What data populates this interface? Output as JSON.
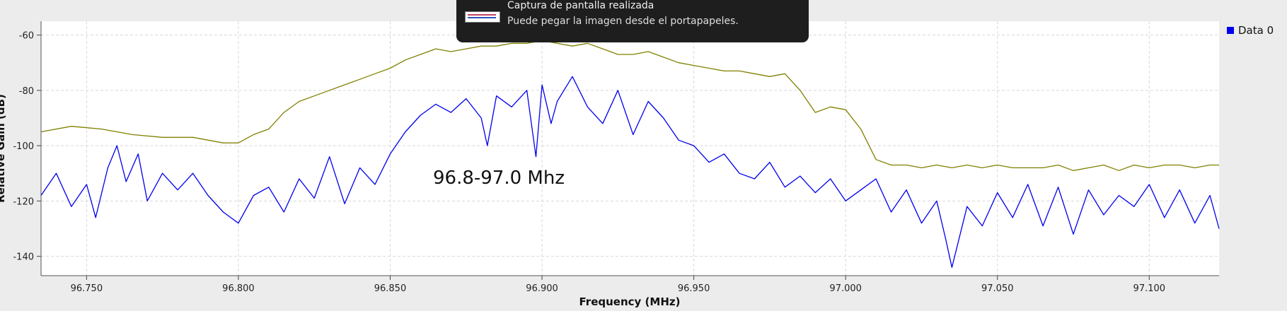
{
  "chart_data": {
    "type": "line",
    "xlabel": "Frequency (MHz)",
    "ylabel": "Relative Gain (dB)",
    "xlim": [
      96.735,
      97.123
    ],
    "ylim": [
      -147,
      -55
    ],
    "grid": true,
    "legend_position": "top-right",
    "x_ticks": [
      96.75,
      96.8,
      96.85,
      96.9,
      96.95,
      97.0,
      97.05,
      97.1
    ],
    "x_tick_labels": [
      "96.750",
      "96.800",
      "96.850",
      "96.900",
      "96.950",
      "97.000",
      "97.050",
      "97.100"
    ],
    "y_ticks": [
      -60,
      -80,
      -100,
      -120,
      -140
    ],
    "y_tick_labels": [
      "-60",
      "-80",
      "-100",
      "-120",
      "-140"
    ],
    "annotation": {
      "text": "96.8-97.0 Mhz",
      "x": 96.866,
      "y": -112
    },
    "series": [
      {
        "name": "Data 0",
        "color": "#0000ee",
        "x": [
          96.735,
          96.74,
          96.745,
          96.75,
          96.753,
          96.757,
          96.76,
          96.763,
          96.767,
          96.77,
          96.775,
          96.78,
          96.785,
          96.79,
          96.795,
          96.8,
          96.805,
          96.81,
          96.815,
          96.82,
          96.825,
          96.83,
          96.835,
          96.84,
          96.845,
          96.85,
          96.855,
          96.86,
          96.865,
          96.87,
          96.875,
          96.88,
          96.882,
          96.885,
          96.89,
          96.895,
          96.898,
          96.9,
          96.903,
          96.905,
          96.91,
          96.915,
          96.92,
          96.925,
          96.93,
          96.935,
          96.94,
          96.945,
          96.95,
          96.955,
          96.96,
          96.965,
          96.97,
          96.975,
          96.98,
          96.985,
          96.99,
          96.995,
          97.0,
          97.005,
          97.01,
          97.015,
          97.02,
          97.025,
          97.03,
          97.033,
          97.035,
          97.04,
          97.045,
          97.05,
          97.055,
          97.06,
          97.065,
          97.07,
          97.075,
          97.08,
          97.085,
          97.09,
          97.095,
          97.1,
          97.105,
          97.11,
          97.115,
          97.12,
          97.123
        ],
        "y": [
          -118,
          -110,
          -122,
          -114,
          -126,
          -108,
          -100,
          -113,
          -103,
          -120,
          -110,
          -116,
          -110,
          -118,
          -124,
          -128,
          -118,
          -115,
          -124,
          -112,
          -119,
          -104,
          -121,
          -108,
          -114,
          -103,
          -95,
          -89,
          -85,
          -88,
          -83,
          -90,
          -100,
          -82,
          -86,
          -80,
          -104,
          -78,
          -92,
          -84,
          -75,
          -86,
          -92,
          -80,
          -96,
          -84,
          -90,
          -98,
          -100,
          -106,
          -103,
          -110,
          -112,
          -106,
          -115,
          -111,
          -117,
          -112,
          -120,
          -116,
          -112,
          -124,
          -116,
          -128,
          -120,
          -134,
          -144,
          -122,
          -129,
          -117,
          -126,
          -114,
          -129,
          -115,
          -132,
          -116,
          -125,
          -118,
          -122,
          -114,
          -126,
          -116,
          -128,
          -118,
          -130
        ]
      },
      {
        "name": "",
        "color": "#808000",
        "x": [
          96.735,
          96.745,
          96.755,
          96.765,
          96.775,
          96.785,
          96.795,
          96.8,
          96.805,
          96.81,
          96.815,
          96.82,
          96.825,
          96.83,
          96.835,
          96.84,
          96.845,
          96.85,
          96.855,
          96.86,
          96.865,
          96.87,
          96.875,
          96.88,
          96.885,
          96.89,
          96.895,
          96.9,
          96.905,
          96.91,
          96.915,
          96.92,
          96.925,
          96.93,
          96.935,
          96.94,
          96.945,
          96.95,
          96.955,
          96.96,
          96.965,
          96.97,
          96.975,
          96.98,
          96.985,
          96.99,
          96.995,
          97.0,
          97.005,
          97.01,
          97.015,
          97.02,
          97.025,
          97.03,
          97.035,
          97.04,
          97.045,
          97.05,
          97.055,
          97.06,
          97.065,
          97.07,
          97.075,
          97.08,
          97.085,
          97.09,
          97.095,
          97.1,
          97.105,
          97.11,
          97.115,
          97.12,
          97.123
        ],
        "y": [
          -95,
          -93,
          -94,
          -96,
          -97,
          -97,
          -99,
          -99,
          -96,
          -94,
          -88,
          -84,
          -82,
          -80,
          -78,
          -76,
          -74,
          -72,
          -69,
          -67,
          -65,
          -66,
          -65,
          -64,
          -64,
          -63,
          -63,
          -62,
          -63,
          -64,
          -63,
          -65,
          -67,
          -67,
          -66,
          -68,
          -70,
          -71,
          -72,
          -73,
          -73,
          -74,
          -75,
          -74,
          -80,
          -88,
          -86,
          -87,
          -94,
          -105,
          -107,
          -107,
          -108,
          -107,
          -108,
          -107,
          -108,
          -107,
          -108,
          -108,
          -108,
          -107,
          -109,
          -108,
          -107,
          -109,
          -107,
          -108,
          -107,
          -107,
          -108,
          -107,
          -107
        ]
      }
    ]
  },
  "notification": {
    "title": "Captura de pantalla realizada",
    "body": "Puede pegar la imagen desde el portapapeles."
  }
}
